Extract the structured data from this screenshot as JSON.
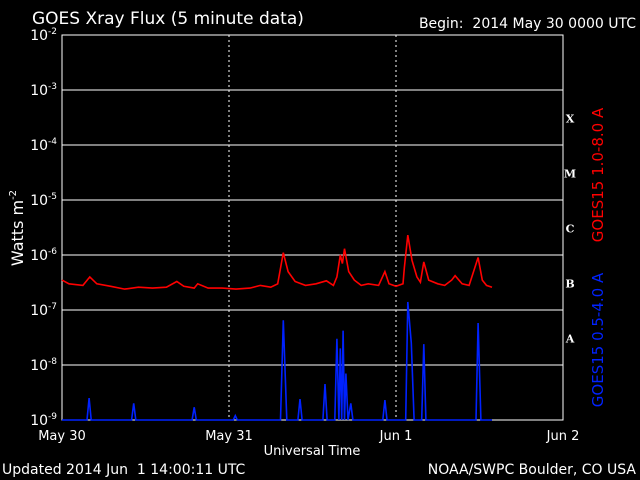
{
  "chart_data": {
    "type": "line",
    "title": "GOES Xray Flux (5 minute data)",
    "subtitle": "Begin:  2014 May 30 0000 UTC",
    "xlabel": "Universal Time",
    "ylabel": "Watts m",
    "ylabel_exponent": "-2",
    "footer_left": "Updated 2014 Jun  1 14:00:11 UTC",
    "footer_right": "NOAA/SWPC Boulder, CO USA",
    "log_scale_y": true,
    "grid": true,
    "xlim": [
      0,
      72
    ],
    "xticks": [
      {
        "value": 0,
        "label": "May 30"
      },
      {
        "value": 24,
        "label": "May 31"
      },
      {
        "value": 48,
        "label": "Jun 1"
      },
      {
        "value": 72,
        "label": "Jun 2"
      }
    ],
    "ylim": [
      1e-09,
      0.01
    ],
    "yticks": [
      {
        "value": 1e-09,
        "label": "10",
        "exponent": "-9"
      },
      {
        "value": 1e-08,
        "label": "10",
        "exponent": "-8"
      },
      {
        "value": 1e-07,
        "label": "10",
        "exponent": "-7"
      },
      {
        "value": 1e-06,
        "label": "10",
        "exponent": "-6"
      },
      {
        "value": 1e-05,
        "label": "10",
        "exponent": "-5"
      },
      {
        "value": 0.0001,
        "label": "10",
        "exponent": "-4"
      },
      {
        "value": 0.001,
        "label": "10",
        "exponent": "-3"
      },
      {
        "value": 0.01,
        "label": "10",
        "exponent": "-2"
      }
    ],
    "flare_classes": [
      {
        "label": "X",
        "value": 0.0001
      },
      {
        "label": "M",
        "value": 1e-05
      },
      {
        "label": "C",
        "value": 1e-06
      },
      {
        "label": "B",
        "value": 1e-07
      },
      {
        "label": "A",
        "value": 1e-08
      }
    ],
    "series": [
      {
        "name": "GOES15 1.0-8.0 A",
        "color": "#ff0000",
        "x": [
          0,
          1,
          3,
          4,
          5,
          7,
          9,
          11,
          13,
          15,
          16.5,
          17.5,
          19,
          19.5,
          21,
          23,
          25,
          27,
          28.5,
          30,
          31,
          31.8,
          32.5,
          33.5,
          35,
          36.5,
          38,
          39,
          39.5,
          40,
          40.3,
          40.6,
          41.2,
          42,
          43,
          44,
          45.5,
          46.4,
          47,
          48,
          49,
          49.2,
          49.7,
          50.3,
          51,
          51.5,
          52,
          52.7,
          54,
          55,
          56,
          56.5,
          57.5,
          58.5,
          59.8,
          60.4,
          61,
          61.8
        ],
        "values": [
          3.5e-07,
          3e-07,
          2.8e-07,
          4e-07,
          3e-07,
          2.7e-07,
          2.4e-07,
          2.6e-07,
          2.5e-07,
          2.6e-07,
          3.3e-07,
          2.7e-07,
          2.5e-07,
          3e-07,
          2.5e-07,
          2.5e-07,
          2.4e-07,
          2.5e-07,
          2.8e-07,
          2.6e-07,
          3e-07,
          1.1e-06,
          5e-07,
          3.3e-07,
          2.8e-07,
          3e-07,
          3.4e-07,
          2.8e-07,
          4e-07,
          1e-06,
          7e-07,
          1.3e-06,
          5e-07,
          3.5e-07,
          2.8e-07,
          3e-07,
          2.8e-07,
          5e-07,
          3e-07,
          2.7e-07,
          3e-07,
          6e-07,
          2.3e-06,
          8e-07,
          4e-07,
          3.2e-07,
          7.5e-07,
          3.5e-07,
          3e-07,
          2.8e-07,
          3.5e-07,
          4.2e-07,
          3e-07,
          2.8e-07,
          9e-07,
          3.5e-07,
          2.8e-07,
          2.6e-07
        ]
      },
      {
        "name": "GOES15 0.5-4.0 A",
        "color": "#0022ff",
        "x": [
          0,
          3.6,
          3.9,
          4.2,
          10,
          10.3,
          10.6,
          18.7,
          19,
          19.3,
          24.6,
          24.9,
          25.2,
          31.4,
          31.8,
          32.3,
          33.9,
          34.2,
          34.5,
          37.5,
          37.8,
          38.1,
          39.2,
          39.5,
          39.8,
          40,
          40.2,
          40.4,
          40.6,
          40.8,
          41.1,
          41.5,
          41.8,
          46.1,
          46.4,
          46.7,
          49.4,
          49.7,
          50.2,
          50.6,
          51.7,
          52,
          52.3,
          59.5,
          59.8,
          60.2,
          61.8
        ],
        "values": [
          1e-09,
          1e-09,
          2.5e-09,
          1e-09,
          1e-09,
          2e-09,
          1e-09,
          1e-09,
          1.7e-09,
          1e-09,
          1e-09,
          1.2e-09,
          1e-09,
          1e-09,
          6.5e-08,
          1e-09,
          1e-09,
          2.4e-09,
          1e-09,
          1e-09,
          4.5e-09,
          1e-09,
          1e-09,
          3e-08,
          1e-09,
          2e-08,
          1e-09,
          4.2e-08,
          1e-09,
          7e-09,
          1e-09,
          2e-09,
          1e-09,
          1e-09,
          2.3e-09,
          1e-09,
          1e-09,
          1.4e-07,
          2.5e-08,
          1e-09,
          1e-09,
          2.4e-08,
          1e-09,
          1e-09,
          5.8e-08,
          1e-09,
          1e-09
        ]
      }
    ]
  }
}
